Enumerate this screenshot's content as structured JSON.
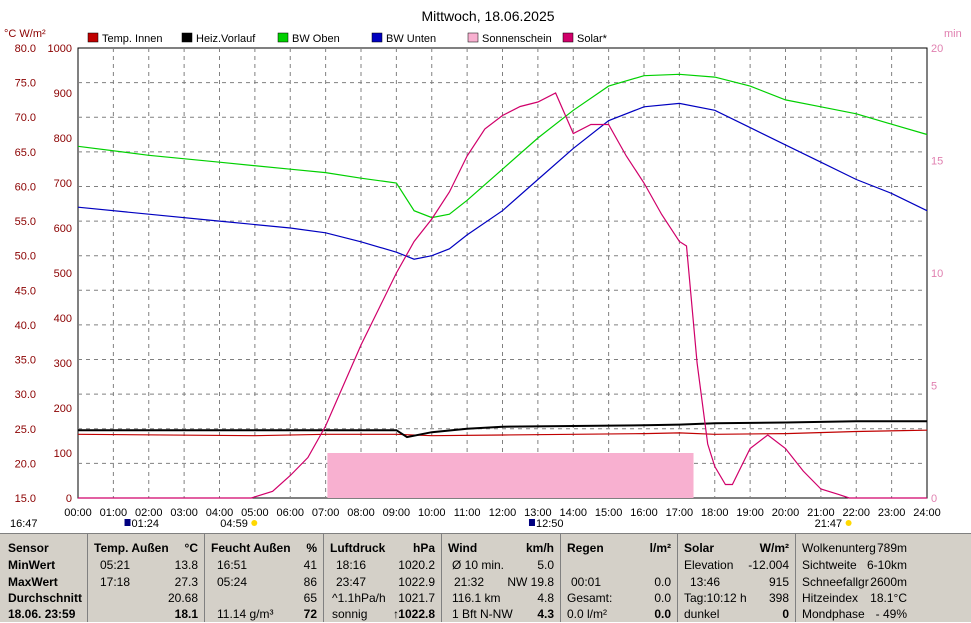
{
  "colors": {
    "temp_innen": "#c00000",
    "heiz_vorlauf": "#000000",
    "bw_oben": "#00d000",
    "bw_unten": "#0000c0",
    "sonnenschein": "#f8b0d0",
    "solar": "#d0006a",
    "grid": "#808080",
    "left_axis": "#8b0000",
    "right_axis": "#e080b0"
  },
  "chart_data": {
    "type": "line",
    "title": "Mittwoch, 18.06.2025",
    "left_axis_label": "°C  W/m²",
    "right_axis_label": "min",
    "ylim_temp": [
      15,
      80
    ],
    "ylim_solar": [
      0,
      1000
    ],
    "ylim_sun_minutes": [
      0,
      20
    ],
    "temp_ticks": [
      "80.0",
      "75.0",
      "70.0",
      "65.0",
      "60.0",
      "55.0",
      "50.0",
      "45.0",
      "40.0",
      "35.0",
      "30.0",
      "25.0",
      "20.0",
      "15.0"
    ],
    "solar_ticks": [
      "1000",
      "900",
      "800",
      "700",
      "600",
      "500",
      "400",
      "300",
      "200",
      "100",
      "0"
    ],
    "min_ticks": [
      "20",
      "15",
      "10",
      "5",
      "0"
    ],
    "x_ticks": [
      "00:00",
      "01:00",
      "02:00",
      "03:00",
      "04:00",
      "05:00",
      "06:00",
      "07:00",
      "08:00",
      "09:00",
      "10:00",
      "11:00",
      "12:00",
      "13:00",
      "14:00",
      "15:00",
      "16:00",
      "17:00",
      "18:00",
      "19:00",
      "20:00",
      "21:00",
      "22:00",
      "23:00",
      "24:00"
    ],
    "legend": [
      "Temp. Innen",
      "Heiz.Vorlauf",
      "BW Oben",
      "BW Unten",
      "Sonnenschein",
      "Solar*"
    ],
    "series": [
      {
        "name": "Temp. Innen",
        "axis": "temp",
        "x": [
          0,
          5,
          7,
          9,
          10,
          12,
          14,
          16,
          17,
          18,
          20,
          22,
          24
        ],
        "y": [
          24.2,
          24.0,
          24.2,
          24.2,
          24.0,
          24.1,
          24.2,
          24.3,
          24.4,
          24.2,
          24.3,
          24.6,
          24.8
        ]
      },
      {
        "name": "Heiz.Vorlauf",
        "axis": "temp",
        "x": [
          0,
          5,
          7,
          9,
          9.3,
          10,
          11,
          12,
          14,
          16,
          17,
          18,
          20,
          22,
          24
        ],
        "y": [
          24.8,
          24.8,
          24.8,
          24.8,
          23.8,
          24.5,
          25.0,
          25.3,
          25.4,
          25.5,
          25.6,
          25.8,
          25.9,
          26.1,
          26.1
        ]
      },
      {
        "name": "BW Oben",
        "axis": "temp",
        "x": [
          0,
          2,
          4,
          6,
          7,
          8,
          9,
          9.5,
          10,
          10.5,
          11,
          12,
          13,
          14,
          15,
          16,
          17,
          18,
          19,
          20,
          21,
          22,
          23,
          24
        ],
        "y": [
          65.8,
          64.5,
          63.5,
          62.5,
          62.0,
          61.2,
          60.5,
          56.5,
          55.5,
          56.0,
          58.0,
          62.5,
          67.0,
          71.0,
          74.5,
          76.0,
          76.2,
          75.8,
          74.5,
          72.5,
          71.5,
          70.5,
          69.0,
          67.5
        ]
      },
      {
        "name": "BW Unten",
        "axis": "temp",
        "x": [
          0,
          2,
          4,
          6,
          7,
          8,
          9,
          9.5,
          10,
          10.5,
          11,
          12,
          13,
          14,
          15,
          16,
          17,
          18,
          19,
          20,
          21,
          22,
          23,
          24
        ],
        "y": [
          57.0,
          56.0,
          55.0,
          54.0,
          53.3,
          52.0,
          50.5,
          49.5,
          50.0,
          51.0,
          53.0,
          56.5,
          61.0,
          65.5,
          69.5,
          71.5,
          72.0,
          71.0,
          68.5,
          66.0,
          63.5,
          61.0,
          59.0,
          56.5
        ]
      },
      {
        "name": "Solar*",
        "axis": "solar",
        "x": [
          0,
          4.9,
          5.5,
          6,
          6.5,
          7,
          7.5,
          8,
          8.5,
          9,
          9.5,
          10,
          10.5,
          11,
          11.5,
          12,
          12.5,
          13,
          13.5,
          14,
          14.5,
          15,
          15.5,
          16,
          16.5,
          17,
          17.2,
          17.5,
          17.8,
          18,
          18.3,
          18.5,
          19,
          19.5,
          20,
          20.5,
          21,
          21.5,
          21.8,
          24
        ],
        "y": [
          0,
          0,
          15,
          50,
          90,
          160,
          250,
          340,
          420,
          500,
          570,
          620,
          680,
          760,
          820,
          850,
          870,
          880,
          900,
          810,
          830,
          830,
          760,
          700,
          630,
          570,
          560,
          300,
          120,
          70,
          30,
          30,
          110,
          140,
          110,
          60,
          20,
          8,
          0,
          0
        ]
      },
      {
        "name": "Sonnenschein",
        "axis": "minutes",
        "type": "area",
        "x": [
          7.05,
          17.4
        ],
        "y": [
          2,
          2
        ]
      }
    ],
    "markers": {
      "sunrise": "04:59",
      "sunset": "21:47",
      "moonrise": "01:24",
      "moonset": "12:50",
      "left_time": "16:47"
    }
  },
  "stats": {
    "sensor": {
      "title": "Sensor",
      "min": "MinWert",
      "max": "MaxWert",
      "avg": "Durchschnitt",
      "date": "18.06. 23:59"
    },
    "temp": {
      "title": "Temp. Außen",
      "unit": "°C",
      "min_time": "05:21",
      "min": "13.8",
      "max_time": "17:18",
      "max": "27.3",
      "avg": "20.68",
      "cur": "18.1"
    },
    "hum": {
      "title": "Feucht Außen",
      "unit": "%",
      "min_time": "16:51",
      "min": "41",
      "max_time": "05:24",
      "max": "86",
      "avg": "65",
      "abs": "11.14 g/m³",
      "cur": "72"
    },
    "press": {
      "title": "Luftdruck",
      "unit": "hPa",
      "min_time": "18:16",
      "min": "1020.2",
      "max_time": "23:47",
      "max": "1022.9",
      "trend": "^1.1hPa/h",
      "avg": "1021.7",
      "weather": "sonnig",
      "cur": "1022.8",
      "arrow": "↑"
    },
    "wind": {
      "title": "Wind",
      "unit": "km/h",
      "avg_label": "Ø 10 min.",
      "avg": "5.0",
      "gust_time": "21:32",
      "gust": "NW 19.8",
      "dist": "116.1 km",
      "dist_val": "4.8",
      "bft": "1 Bft N-NW",
      "cur": "4.3"
    },
    "rain": {
      "title": "Regen",
      "unit": "l/m²",
      "t1": "00:01",
      "v1": "0.0",
      "total_label": "Gesamt:",
      "total": "0.0",
      "cur_label": "0.0 l/m²",
      "cur": "0.0"
    },
    "solar": {
      "title": "Solar",
      "unit": "W/m²",
      "elev_label": "Elevation",
      "elev": "-12.004",
      "max_time": "13:46",
      "max": "915",
      "day": "Tag:10:12 h",
      "day_val": "398",
      "state": "dunkel",
      "cur": "0"
    },
    "extra": {
      "k1": "Wolkenunterg",
      "v1": "789m",
      "k2": "Sichtweite",
      "v2": "6-10km",
      "k3": "Schneefallgr",
      "v3": "2600m",
      "k4": "Hitzeindex",
      "v4": "18.1°C",
      "k5": "Mondphase",
      "v5": "- 49%"
    }
  }
}
